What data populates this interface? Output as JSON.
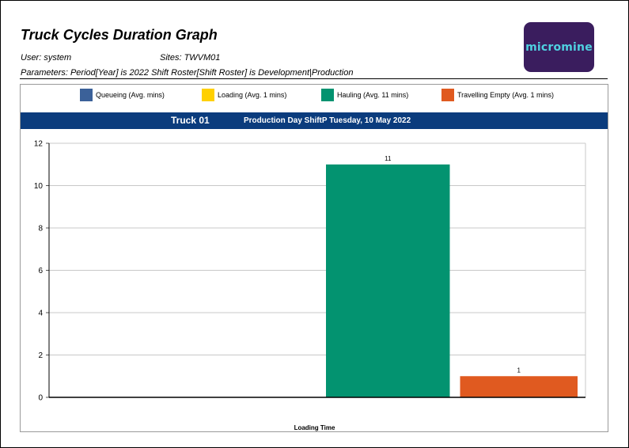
{
  "header": {
    "title": "Truck Cycles Duration Graph",
    "user": "User: system",
    "sites": "Sites: TWVM01",
    "parameters": "Parameters: Period[Year] is 2022 Shift Roster[Shift Roster] is Development|Production",
    "logo_text": "micromine"
  },
  "band": {
    "truck": "Truck 01",
    "day": "Production Day ShiftP Tuesday, 10 May 2022"
  },
  "colors": {
    "brand": "#3a1d5e",
    "band": "#0b3c7d"
  },
  "chart_data": {
    "type": "bar",
    "xlabel": "Loading Time",
    "ylabel": "",
    "ylim": [
      0,
      12
    ],
    "yticks": [
      0,
      2,
      4,
      6,
      8,
      10,
      12
    ],
    "grid": true,
    "legend_position": "top",
    "series": [
      {
        "name": "Queueing (Avg.  mins)",
        "value": null,
        "color": "#3b6199"
      },
      {
        "name": "Loading (Avg. 1 mins)",
        "value": null,
        "color": "#ffd000"
      },
      {
        "name": "Hauling (Avg. 11 mins)",
        "value": 11,
        "value_label": "11",
        "color": "#039370"
      },
      {
        "name": "Travelling Empty (Avg. 1 mins)",
        "value": 1,
        "value_label": "1",
        "color": "#e05a20"
      }
    ]
  }
}
